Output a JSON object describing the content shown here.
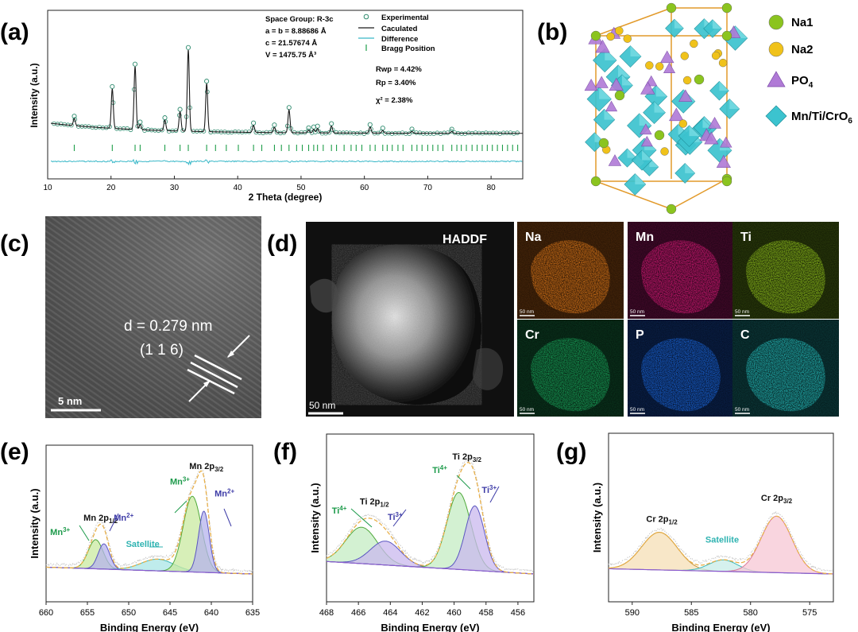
{
  "panel_labels": {
    "a": "(a)",
    "b": "(b)",
    "c": "(c)",
    "d": "(d)",
    "e": "(e)",
    "f": "(f)",
    "g": "(g)"
  },
  "colors": {
    "xrd_fit": "#1a1a1a",
    "xrd_exp": "#2e8b6e",
    "xrd_bragg": "#1f9e4a",
    "xrd_diff": "#39b8c8",
    "na1": "#8bc41f",
    "na2": "#f0c21a",
    "po4": "#b07ad6",
    "octa": "#3cc3cf",
    "cell": "#e29a2a",
    "envelope": "#e8b04a",
    "raw": "#b9b9b9",
    "bg": "#c6a5e8",
    "mn3_fill": "#c9eaa0",
    "mn2_fill": "#b6b3ec",
    "sat_fill": "#a9e6e6",
    "ti4_fill": "#c4ecc3",
    "ti3_fill": "#c9b8ee",
    "cr12_fill": "#f6dfb6",
    "sat_cr_fill": "#c7ece8",
    "cr32_fill": "#f7c7d4",
    "mn3_label": "#1c9a4a",
    "mn2_label": "#3c3aa6",
    "sat_label": "#2fb3b1",
    "ti4_label": "#1c9a4a",
    "ti3_label": "#3c3aa6"
  },
  "micro": {
    "c": {
      "d_spacing": "d = 0.279 nm",
      "plane": "(1 1 6)",
      "scale": "5 nm"
    },
    "d": {
      "haddf": "HADDF",
      "scale": "50 nm",
      "map_scale": "50 nm",
      "maps": [
        {
          "label": "Na",
          "color": "#d9761a",
          "bg": "#2a1606"
        },
        {
          "label": "Mn",
          "color": "#d21a74",
          "bg": "#26061a"
        },
        {
          "label": "Ti",
          "color": "#8fbf1c",
          "bg": "#161f06"
        },
        {
          "label": "Cr",
          "color": "#1aa35a",
          "bg": "#061c10"
        },
        {
          "label": "P",
          "color": "#1a64d6",
          "bg": "#06122a"
        },
        {
          "label": "C",
          "color": "#25b9b8",
          "bg": "#061e1f"
        }
      ]
    }
  },
  "structure_legend": [
    {
      "label": "Na1",
      "shape": "sphere",
      "color": "#8bc41f"
    },
    {
      "label": "Na2",
      "shape": "sphere",
      "color": "#f0c21a"
    },
    {
      "label": "PO4",
      "shape": "tetrahedron",
      "color": "#b07ad6"
    },
    {
      "label": "Mn/Ti/CrO6",
      "shape": "octahedron",
      "color": "#3cc3cf"
    }
  ],
  "chart_data": [
    {
      "panel": "a",
      "type": "line",
      "xlabel": "2 Theta (degree)",
      "ylabel": "Intensity (a.u.)",
      "xlim": [
        10,
        85
      ],
      "xticks": [
        10,
        20,
        30,
        40,
        50,
        60,
        70,
        80
      ],
      "legend": [
        "Experimental",
        "Caculated",
        "Difference",
        "Bragg Position"
      ],
      "annotations": [
        "Space Group: R-3c",
        "a = b = 8.88686 Å",
        "c = 21.57674 Å",
        "V = 1475.75 Å³"
      ],
      "fit_stats": [
        "Rwp = 4.42%",
        "Rp = 3.40%",
        "χ² = 2.38%"
      ],
      "peaks": [
        {
          "x": 14.2,
          "h": 0.08
        },
        {
          "x": 20.2,
          "h": 0.45
        },
        {
          "x": 23.8,
          "h": 0.72
        },
        {
          "x": 24.6,
          "h": 0.06
        },
        {
          "x": 28.5,
          "h": 0.12
        },
        {
          "x": 30.9,
          "h": 0.22
        },
        {
          "x": 32.2,
          "h": 0.93
        },
        {
          "x": 35.1,
          "h": 0.55
        },
        {
          "x": 42.5,
          "h": 0.08
        },
        {
          "x": 45.8,
          "h": 0.06
        },
        {
          "x": 48.1,
          "h": 0.26
        },
        {
          "x": 51.2,
          "h": 0.03
        },
        {
          "x": 52.0,
          "h": 0.04
        },
        {
          "x": 52.6,
          "h": 0.05
        },
        {
          "x": 54.8,
          "h": 0.08
        },
        {
          "x": 60.9,
          "h": 0.07
        },
        {
          "x": 62.9,
          "h": 0.03
        },
        {
          "x": 67.5,
          "h": 0.02
        },
        {
          "x": 73.8,
          "h": 0.02
        }
      ],
      "bragg_positions": [
        14.2,
        20.2,
        23.8,
        24.6,
        28.5,
        30.9,
        32.2,
        35.1,
        36.5,
        38.2,
        40.1,
        42.5,
        43.8,
        45.8,
        46.9,
        48.1,
        49.3,
        50.2,
        51.2,
        52.0,
        52.6,
        53.5,
        54.8,
        55.6,
        56.8,
        57.9,
        58.7,
        59.6,
        60.9,
        61.7,
        62.9,
        63.6,
        64.4,
        65.3,
        66.1,
        67.5,
        68.3,
        69.1,
        70.0,
        70.8,
        71.6,
        72.4,
        73.8,
        74.6,
        75.3,
        76.1,
        77.0,
        77.8,
        78.6,
        79.4,
        80.2,
        81.0,
        81.8,
        82.6,
        83.4,
        84.2
      ]
    },
    {
      "panel": "e",
      "type": "area",
      "xlabel": "Binding Energy (eV)",
      "ylabel": "Intensity (a.u.)",
      "xlim": [
        660,
        635
      ],
      "xticks": [
        660,
        655,
        650,
        645,
        640,
        635
      ],
      "baseline": {
        "left": 0.07,
        "right": 0.0
      },
      "components": [
        {
          "name": "Mn3+",
          "center": 654.0,
          "sigma": 0.9,
          "amp": 0.3,
          "fill": "#c9eaa0",
          "stroke": "#4ea83a"
        },
        {
          "name": "Mn2+",
          "center": 653.0,
          "sigma": 0.7,
          "amp": 0.26,
          "fill": "#b6b3ec",
          "stroke": "#5a55c0"
        },
        {
          "name": "Satellite",
          "center": 646.5,
          "sigma": 2.0,
          "amp": 0.12,
          "fill": "#a9e6e6",
          "stroke": "#3cb8b8"
        },
        {
          "name": "Mn3+",
          "center": 642.3,
          "sigma": 1.1,
          "amp": 0.78,
          "fill": "#c9eaa0",
          "stroke": "#4ea83a"
        },
        {
          "name": "Mn2+",
          "center": 640.9,
          "sigma": 0.65,
          "amp": 0.63,
          "fill": "#b6b3ec",
          "stroke": "#5a55c0"
        }
      ],
      "labels": [
        {
          "text": "Mn 2p",
          "sub": "3/2",
          "x": 640.6,
          "y": 1.08,
          "color": "#111"
        },
        {
          "text": "Mn 2p",
          "sub": "1/2",
          "x": 653.4,
          "y": 0.55,
          "color": "#111"
        },
        {
          "text": "Mn",
          "sup": "3+",
          "x": 643.8,
          "y": 0.92,
          "color": "#1c9a4a"
        },
        {
          "text": "Mn",
          "sup": "2+",
          "x": 638.4,
          "y": 0.8,
          "color": "#3c3aa6"
        },
        {
          "text": "Mn",
          "sup": "3+",
          "x": 658.3,
          "y": 0.4,
          "color": "#1c9a4a"
        },
        {
          "text": "Mn",
          "sup": "2+",
          "x": 650.6,
          "y": 0.55,
          "color": "#3c3aa6"
        },
        {
          "text": "Satellite",
          "x": 648.3,
          "y": 0.28,
          "color": "#2fb3b1"
        }
      ]
    },
    {
      "panel": "f",
      "type": "area",
      "xlabel": "Binding Energy (eV)",
      "ylabel": "Intensity (a.u.)",
      "xlim": [
        468,
        455
      ],
      "xticks": [
        468,
        466,
        464,
        462,
        460,
        458,
        456
      ],
      "baseline": {
        "left": 0.12,
        "right": 0.0
      },
      "components": [
        {
          "name": "Ti4+",
          "center": 465.8,
          "sigma": 1.0,
          "amp": 0.35,
          "fill": "#c4ecc3",
          "stroke": "#4ea83a"
        },
        {
          "name": "Ti3+",
          "center": 464.3,
          "sigma": 0.95,
          "amp": 0.23,
          "fill": "#c9b8ee",
          "stroke": "#5a55c0"
        },
        {
          "name": "Ti4+",
          "center": 459.7,
          "sigma": 0.75,
          "amp": 0.74,
          "fill": "#c4ecc3",
          "stroke": "#4ea83a"
        },
        {
          "name": "Ti3+",
          "center": 458.7,
          "sigma": 0.6,
          "amp": 0.62,
          "fill": "#c9b8ee",
          "stroke": "#5a55c0"
        }
      ],
      "labels": [
        {
          "text": "Ti 2p",
          "sub": "3/2",
          "x": 459.2,
          "y": 1.1,
          "color": "#111"
        },
        {
          "text": "Ti 2p",
          "sub": "1/2",
          "x": 465.0,
          "y": 0.67,
          "color": "#111"
        },
        {
          "text": "Ti",
          "sup": "4+",
          "x": 460.9,
          "y": 0.97,
          "color": "#1c9a4a"
        },
        {
          "text": "Ti",
          "sup": "3+",
          "x": 457.8,
          "y": 0.78,
          "color": "#3c3aa6"
        },
        {
          "text": "Ti",
          "sup": "4+",
          "x": 467.2,
          "y": 0.58,
          "color": "#1c9a4a"
        },
        {
          "text": "Ti",
          "sup": "3+",
          "x": 463.7,
          "y": 0.52,
          "color": "#3c3aa6"
        }
      ]
    },
    {
      "panel": "g",
      "type": "area",
      "xlabel": "Binding Energy (eV)",
      "ylabel": "Intensity (a.u.)",
      "xlim": [
        592,
        573
      ],
      "xticks": [
        590,
        585,
        580,
        575
      ],
      "baseline": {
        "left": 0.05,
        "right": 0.0
      },
      "components": [
        {
          "name": "Cr 2p1/2",
          "center": 587.7,
          "sigma": 1.5,
          "amp": 0.36,
          "fill": "#f6dfb6",
          "stroke": "#c8963a"
        },
        {
          "name": "Satellite",
          "center": 582.3,
          "sigma": 1.2,
          "amp": 0.11,
          "fill": "#c7ece8",
          "stroke": "#3cb8b8"
        },
        {
          "name": "Cr 2p3/2",
          "center": 577.8,
          "sigma": 1.3,
          "amp": 0.54,
          "fill": "#f7c7d4",
          "stroke": "#d77a98"
        }
      ],
      "labels": [
        {
          "text": "Cr 2p",
          "sub": "1/2",
          "x": 587.5,
          "y": 0.5,
          "color": "#111"
        },
        {
          "text": "Satellite",
          "x": 582.4,
          "y": 0.3,
          "color": "#2fb3b1"
        },
        {
          "text": "Cr 2p",
          "sub": "3/2",
          "x": 577.8,
          "y": 0.7,
          "color": "#111"
        }
      ]
    }
  ]
}
